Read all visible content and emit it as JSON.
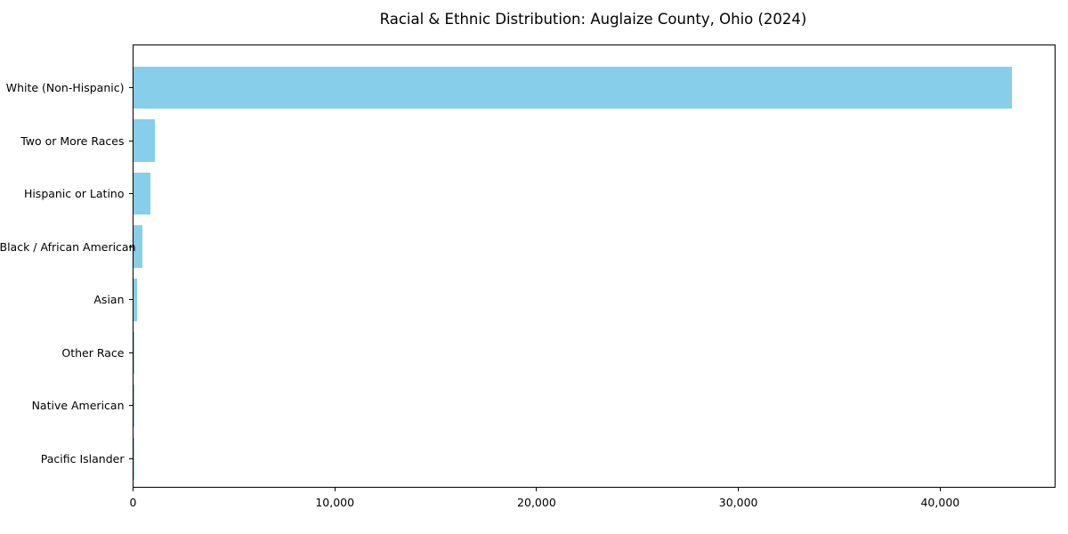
{
  "chart_data": {
    "type": "bar",
    "orientation": "horizontal",
    "title": "Racial & Ethnic Distribution: Auglaize County, Ohio (2024)",
    "xlabel": "",
    "ylabel": "",
    "categories": [
      "White (Non-Hispanic)",
      "Two or More Races",
      "Hispanic or Latino",
      "Black / African American",
      "Asian",
      "Other Race",
      "Native American",
      "Pacific Islander"
    ],
    "values": [
      43560,
      1070,
      870,
      470,
      180,
      50,
      40,
      10
    ],
    "bar_color": "#87CEEB",
    "xlim": [
      0,
      45740
    ],
    "xticks": [
      0,
      10000,
      20000,
      30000,
      40000
    ],
    "xtick_labels": [
      "0",
      "10,000",
      "20,000",
      "30,000",
      "40,000"
    ],
    "grid": false,
    "legend": null,
    "frame": "full-box",
    "background_color": "#ffffff",
    "text_color": "#000000"
  }
}
